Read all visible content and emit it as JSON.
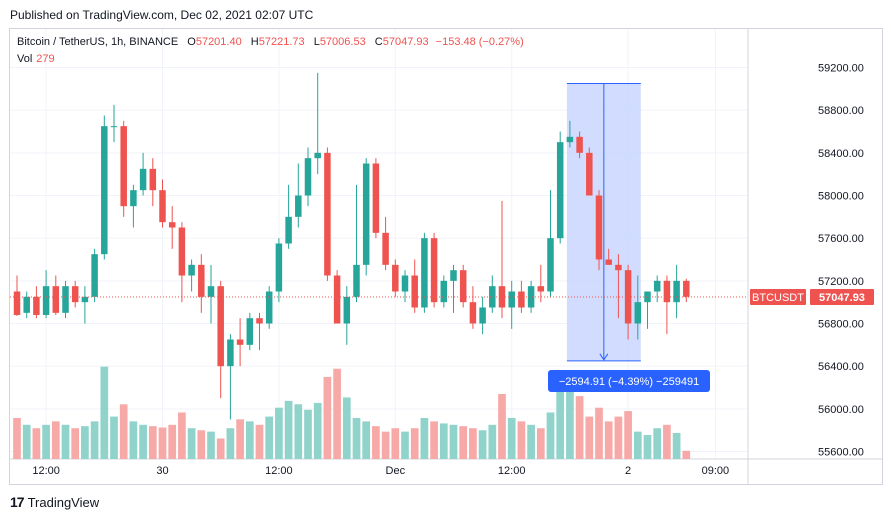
{
  "header": {
    "published": "Published on TradingView.com, Dec 02, 2021 02:07 UTC"
  },
  "legend": {
    "symbol": "Bitcoin / TetherUS, 1h, BINANCE",
    "open_label": "O",
    "open": "57201.40",
    "high_label": "H",
    "high": "57221.73",
    "low_label": "L",
    "low": "57006.53",
    "close_label": "C",
    "close": "57047.93",
    "change": "−153.48 (−0.27%)",
    "vol_label": "Vol",
    "vol": "279"
  },
  "footer": {
    "logo_mark": "17",
    "brand": "TradingView"
  },
  "colors": {
    "up": "#26a69a",
    "down": "#ef5350",
    "up_vol": "#8fd3cb",
    "down_vol": "#f7a9a7",
    "range_fill": "#c9d6ff",
    "range_stroke": "#2962ff",
    "measure_label_bg": "#2962ff"
  },
  "chart_data": {
    "type": "candlestick",
    "ylim": [
      55500,
      59400
    ],
    "yticks": [
      "59200.00",
      "58800.00",
      "58400.00",
      "58000.00",
      "57600.00",
      "57200.00",
      "56800.00",
      "56400.00",
      "56000.00",
      "55600.00"
    ],
    "ytick_values": [
      59200,
      58800,
      58400,
      58000,
      57600,
      57200,
      56800,
      56400,
      56000,
      55600
    ],
    "xticks": [
      {
        "label": "12:00",
        "index": 3
      },
      {
        "label": "30",
        "index": 15
      },
      {
        "label": "12:00",
        "index": 27
      },
      {
        "label": "Dec",
        "index": 39
      },
      {
        "label": "12:00",
        "index": 51
      },
      {
        "label": "2",
        "index": 63
      },
      {
        "label": "09:00",
        "index": 72
      }
    ],
    "price_tag": {
      "symbol": "BTCUSDT",
      "value": 57047.93
    },
    "measure": {
      "start_index": 57,
      "end_index": 64,
      "high": 59050,
      "low": 56450,
      "label": "−2594.91 (−4.39%) −259491"
    },
    "candles": [
      {
        "o": 57100,
        "h": 57250,
        "l": 56870,
        "c": 56880,
        "v": 0.6
      },
      {
        "o": 56900,
        "h": 57100,
        "l": 56850,
        "c": 57050,
        "v": 0.5
      },
      {
        "o": 57050,
        "h": 57150,
        "l": 56850,
        "c": 56880,
        "v": 0.45
      },
      {
        "o": 56880,
        "h": 57300,
        "l": 56850,
        "c": 57150,
        "v": 0.5
      },
      {
        "o": 57150,
        "h": 57250,
        "l": 56880,
        "c": 56900,
        "v": 0.55
      },
      {
        "o": 56900,
        "h": 57200,
        "l": 56850,
        "c": 57150,
        "v": 0.5
      },
      {
        "o": 57150,
        "h": 57200,
        "l": 56950,
        "c": 57000,
        "v": 0.45
      },
      {
        "o": 57000,
        "h": 57150,
        "l": 56800,
        "c": 57050,
        "v": 0.48
      },
      {
        "o": 57050,
        "h": 57500,
        "l": 57000,
        "c": 57450,
        "v": 0.55
      },
      {
        "o": 57450,
        "h": 58750,
        "l": 57400,
        "c": 58650,
        "v": 1.35
      },
      {
        "o": 58650,
        "h": 58850,
        "l": 58500,
        "c": 58650,
        "v": 0.62
      },
      {
        "o": 58650,
        "h": 58700,
        "l": 57800,
        "c": 57900,
        "v": 0.8
      },
      {
        "o": 57900,
        "h": 58100,
        "l": 57700,
        "c": 58050,
        "v": 0.55
      },
      {
        "o": 58050,
        "h": 58400,
        "l": 58000,
        "c": 58250,
        "v": 0.5
      },
      {
        "o": 58250,
        "h": 58350,
        "l": 57900,
        "c": 58050,
        "v": 0.48
      },
      {
        "o": 58050,
        "h": 58150,
        "l": 57700,
        "c": 57750,
        "v": 0.46
      },
      {
        "o": 57750,
        "h": 57900,
        "l": 57500,
        "c": 57700,
        "v": 0.5
      },
      {
        "o": 57700,
        "h": 57750,
        "l": 57000,
        "c": 57250,
        "v": 0.68
      },
      {
        "o": 57250,
        "h": 57400,
        "l": 57100,
        "c": 57350,
        "v": 0.45
      },
      {
        "o": 57350,
        "h": 57450,
        "l": 56900,
        "c": 57050,
        "v": 0.42
      },
      {
        "o": 57050,
        "h": 57350,
        "l": 56800,
        "c": 57150,
        "v": 0.4
      },
      {
        "o": 57150,
        "h": 57200,
        "l": 56100,
        "c": 56400,
        "v": 0.3
      },
      {
        "o": 56400,
        "h": 56700,
        "l": 55900,
        "c": 56650,
        "v": 0.45
      },
      {
        "o": 56650,
        "h": 56850,
        "l": 56400,
        "c": 56600,
        "v": 0.58
      },
      {
        "o": 56600,
        "h": 56900,
        "l": 56550,
        "c": 56850,
        "v": 0.55
      },
      {
        "o": 56850,
        "h": 56900,
        "l": 56550,
        "c": 56800,
        "v": 0.5
      },
      {
        "o": 56800,
        "h": 57150,
        "l": 56750,
        "c": 57100,
        "v": 0.62
      },
      {
        "o": 57100,
        "h": 57600,
        "l": 57000,
        "c": 57550,
        "v": 0.75
      },
      {
        "o": 57550,
        "h": 58100,
        "l": 57500,
        "c": 57800,
        "v": 0.85
      },
      {
        "o": 57800,
        "h": 58300,
        "l": 57700,
        "c": 58000,
        "v": 0.8
      },
      {
        "o": 58000,
        "h": 58450,
        "l": 57900,
        "c": 58350,
        "v": 0.72
      },
      {
        "o": 58350,
        "h": 59150,
        "l": 58200,
        "c": 58400,
        "v": 0.82
      },
      {
        "o": 58400,
        "h": 58450,
        "l": 57200,
        "c": 57250,
        "v": 1.2
      },
      {
        "o": 57250,
        "h": 57300,
        "l": 56800,
        "c": 56800,
        "v": 1.32
      },
      {
        "o": 56800,
        "h": 57150,
        "l": 56600,
        "c": 57050,
        "v": 0.9
      },
      {
        "o": 57050,
        "h": 58100,
        "l": 57000,
        "c": 57350,
        "v": 0.6
      },
      {
        "o": 57350,
        "h": 58350,
        "l": 57250,
        "c": 58300,
        "v": 0.55
      },
      {
        "o": 58300,
        "h": 58350,
        "l": 57600,
        "c": 57650,
        "v": 0.48
      },
      {
        "o": 57650,
        "h": 57800,
        "l": 57300,
        "c": 57350,
        "v": 0.4
      },
      {
        "o": 57350,
        "h": 57400,
        "l": 57050,
        "c": 57100,
        "v": 0.45
      },
      {
        "o": 57100,
        "h": 57300,
        "l": 57000,
        "c": 57250,
        "v": 0.4
      },
      {
        "o": 57250,
        "h": 57400,
        "l": 56900,
        "c": 56950,
        "v": 0.45
      },
      {
        "o": 56950,
        "h": 57650,
        "l": 56900,
        "c": 57600,
        "v": 0.6
      },
      {
        "o": 57600,
        "h": 57650,
        "l": 56950,
        "c": 57000,
        "v": 0.55
      },
      {
        "o": 57000,
        "h": 57250,
        "l": 56950,
        "c": 57200,
        "v": 0.52
      },
      {
        "o": 57200,
        "h": 57350,
        "l": 56900,
        "c": 57300,
        "v": 0.5
      },
      {
        "o": 57300,
        "h": 57350,
        "l": 56950,
        "c": 57000,
        "v": 0.48
      },
      {
        "o": 57000,
        "h": 57150,
        "l": 56750,
        "c": 56800,
        "v": 0.45
      },
      {
        "o": 56800,
        "h": 57050,
        "l": 56700,
        "c": 56950,
        "v": 0.42
      },
      {
        "o": 56950,
        "h": 57250,
        "l": 56900,
        "c": 57150,
        "v": 0.5
      },
      {
        "o": 57150,
        "h": 57950,
        "l": 56850,
        "c": 56950,
        "v": 0.95
      },
      {
        "o": 56950,
        "h": 57200,
        "l": 56750,
        "c": 57100,
        "v": 0.6
      },
      {
        "o": 57100,
        "h": 57200,
        "l": 56900,
        "c": 56950,
        "v": 0.55
      },
      {
        "o": 56950,
        "h": 57200,
        "l": 56900,
        "c": 57150,
        "v": 0.5
      },
      {
        "o": 57150,
        "h": 57350,
        "l": 57000,
        "c": 57100,
        "v": 0.45
      },
      {
        "o": 57100,
        "h": 58050,
        "l": 57050,
        "c": 57600,
        "v": 0.68
      },
      {
        "o": 57600,
        "h": 58600,
        "l": 57550,
        "c": 58500,
        "v": 1.0
      },
      {
        "o": 58500,
        "h": 58700,
        "l": 58450,
        "c": 58550,
        "v": 1.1
      },
      {
        "o": 58550,
        "h": 58600,
        "l": 58350,
        "c": 58400,
        "v": 0.92
      },
      {
        "o": 58400,
        "h": 58450,
        "l": 58000,
        "c": 58000,
        "v": 0.62
      },
      {
        "o": 58000,
        "h": 58050,
        "l": 57300,
        "c": 57400,
        "v": 0.75
      },
      {
        "o": 57400,
        "h": 57500,
        "l": 57350,
        "c": 57350,
        "v": 0.55
      },
      {
        "o": 57350,
        "h": 57450,
        "l": 56850,
        "c": 57300,
        "v": 0.62
      },
      {
        "o": 57300,
        "h": 57350,
        "l": 56650,
        "c": 56800,
        "v": 0.7
      },
      {
        "o": 56800,
        "h": 57250,
        "l": 56650,
        "c": 57000,
        "v": 0.4
      },
      {
        "o": 57000,
        "h": 57100,
        "l": 56750,
        "c": 57100,
        "v": 0.35
      },
      {
        "o": 57100,
        "h": 57250,
        "l": 57000,
        "c": 57200,
        "v": 0.45
      },
      {
        "o": 57200,
        "h": 57250,
        "l": 56700,
        "c": 57000,
        "v": 0.5
      },
      {
        "o": 57000,
        "h": 57350,
        "l": 56850,
        "c": 57200,
        "v": 0.38
      },
      {
        "o": 57200,
        "h": 57220,
        "l": 57000,
        "c": 57050,
        "v": 0.12
      }
    ]
  }
}
